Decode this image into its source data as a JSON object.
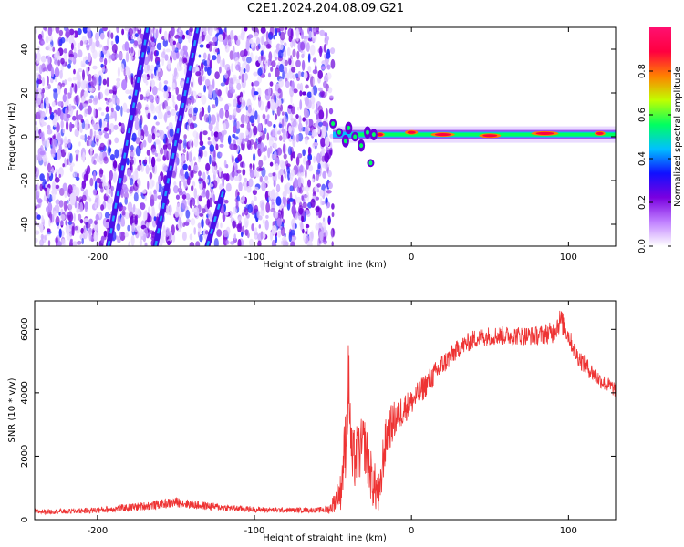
{
  "title": "C2E1.2024.204.08.09.G21",
  "chart_data": [
    {
      "type": "heatmap",
      "xlabel": "Height of straight line (km)",
      "ylabel": "Frequency (Hz)",
      "xlim": [
        -240,
        130
      ],
      "ylim": [
        -50,
        50
      ],
      "x_ticks": [
        -200,
        -100,
        0,
        100
      ],
      "y_ticks": [
        -40,
        -20,
        0,
        20,
        40
      ],
      "x_tick_labels": [
        "-200",
        "-100",
        "0",
        "100"
      ],
      "y_tick_labels": [
        "-40",
        "-20",
        "0",
        "20",
        "40"
      ],
      "colorbar": {
        "label": "Normalized spectral amplitude",
        "range": [
          0,
          1
        ],
        "ticks": [
          0.0,
          0.2,
          0.4,
          0.6,
          0.8
        ],
        "tick_labels": [
          "0.0",
          "0.2",
          "0.4",
          "0.6",
          "0.8"
        ],
        "colormap": [
          "#ffffff",
          "#c080ff",
          "#7a00e0",
          "#1010ff",
          "#00c0ff",
          "#00ff60",
          "#c0ff00",
          "#ff8000",
          "#ff0040",
          "#ff1070"
        ]
      },
      "features": [
        {
          "name": "noise_region",
          "x_range": [
            -240,
            -50
          ]
        },
        {
          "name": "streak_1",
          "points": [
            [
              -193,
              -50
            ],
            [
              -168,
              50
            ]
          ]
        },
        {
          "name": "streak_2",
          "points": [
            [
              -163,
              -50
            ],
            [
              -136,
              50
            ]
          ]
        },
        {
          "name": "streak_3",
          "points": [
            [
              -130,
              -50
            ],
            [
              -120,
              -25
            ]
          ]
        },
        {
          "name": "carrier",
          "x_range": [
            -50,
            130
          ],
          "y": 1
        }
      ]
    },
    {
      "type": "line",
      "xlabel": "Height of straight line (km)",
      "ylabel": "SNR (10 * v/v)",
      "xlim": [
        -240,
        130
      ],
      "ylim": [
        0,
        6900
      ],
      "x_ticks": [
        -200,
        -100,
        0,
        100
      ],
      "y_ticks": [
        0,
        2000,
        4000,
        6000
      ],
      "x_tick_labels": [
        "-200",
        "-100",
        "0",
        "100"
      ],
      "y_tick_labels": [
        "0",
        "2000",
        "4000",
        "6000"
      ],
      "series_color": "#ee3333",
      "x": [
        -240,
        -220,
        -200,
        -180,
        -160,
        -150,
        -140,
        -120,
        -100,
        -80,
        -60,
        -52,
        -45,
        -42,
        -40,
        -38,
        -35,
        -30,
        -25,
        -20,
        -18,
        -15,
        -10,
        -5,
        0,
        5,
        10,
        20,
        30,
        40,
        50,
        60,
        70,
        80,
        90,
        95,
        100,
        105,
        110,
        120,
        130
      ],
      "y": [
        250,
        260,
        300,
        380,
        480,
        550,
        480,
        380,
        320,
        300,
        300,
        330,
        900,
        2500,
        4500,
        1800,
        2000,
        2400,
        1200,
        700,
        2000,
        2800,
        3200,
        3500,
        3700,
        4000,
        4300,
        4900,
        5400,
        5700,
        5800,
        5800,
        5800,
        5800,
        5900,
        6300,
        5800,
        5200,
        4900,
        4400,
        4100
      ],
      "noise_amplitude": [
        80,
        80,
        100,
        120,
        150,
        160,
        140,
        110,
        90,
        80,
        80,
        150,
        600,
        1200,
        1300,
        1000,
        1000,
        900,
        800,
        700,
        800,
        700,
        600,
        500,
        400,
        400,
        400,
        350,
        300,
        300,
        300,
        300,
        300,
        300,
        350,
        400,
        300,
        300,
        300,
        250,
        250
      ]
    }
  ]
}
